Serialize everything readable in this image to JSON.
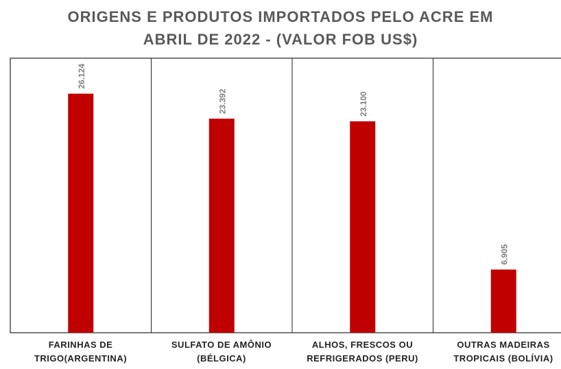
{
  "chart_data": {
    "type": "bar",
    "title_lines": [
      "ORIGENS E PRODUTOS IMPORTADOS PELO ACRE EM",
      "ABRIL DE 2022 - (VALOR FOB US$)"
    ],
    "categories": [
      [
        "FARINHAS DE",
        "TRIGO(ARGENTINA)"
      ],
      [
        "SULFATO DE AMÔNIO",
        "(BÉLGICA)"
      ],
      [
        "ALHOS, FRESCOS OU",
        "REFRIGERADOS (PERU)"
      ],
      [
        "OUTRAS MADEIRAS",
        "TROPICAIS (BOLÍVIA)"
      ]
    ],
    "values": [
      26124,
      23392,
      23100,
      6905
    ],
    "data_labels": [
      "26.124",
      "23.392",
      "23.100",
      "6.905"
    ],
    "xlabel": "",
    "ylabel": "",
    "ylim": [
      0,
      30000
    ],
    "grid": false,
    "bar_color": "#C00000"
  }
}
